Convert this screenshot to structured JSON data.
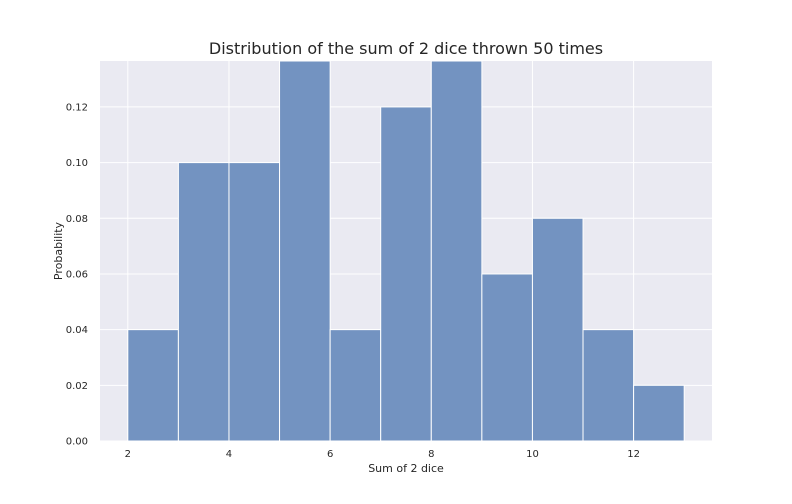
{
  "chart_data": {
    "type": "bar",
    "title": "Distribution of the sum of 2 dice thrown 50 times",
    "xlabel": "Sum of 2 dice",
    "ylabel": "Probability",
    "bins": [
      {
        "x0": 2,
        "x1": 3,
        "value": 0.04
      },
      {
        "x0": 3,
        "x1": 4,
        "value": 0.1
      },
      {
        "x0": 4,
        "x1": 5,
        "value": 0.1
      },
      {
        "x0": 5,
        "x1": 6,
        "value": 0.14
      },
      {
        "x0": 6,
        "x1": 7,
        "value": 0.04
      },
      {
        "x0": 7,
        "x1": 8,
        "value": 0.12
      },
      {
        "x0": 8,
        "x1": 9,
        "value": 0.14
      },
      {
        "x0": 9,
        "x1": 10,
        "value": 0.06
      },
      {
        "x0": 10,
        "x1": 11,
        "value": 0.08
      },
      {
        "x0": 11,
        "x1": 12,
        "value": 0.04
      },
      {
        "x0": 12,
        "x1": 13,
        "value": 0.02
      }
    ],
    "xlim": [
      1.45,
      13.55
    ],
    "ylim": [
      0,
      0.1365
    ],
    "xticks": [
      2,
      4,
      6,
      8,
      10,
      12
    ],
    "xtick_labels": [
      "2",
      "4",
      "6",
      "8",
      "10",
      "12"
    ],
    "yticks": [
      0,
      0.02,
      0.04,
      0.06,
      0.08,
      0.1,
      0.12
    ],
    "ytick_labels": [
      "0.00",
      "0.02",
      "0.04",
      "0.06",
      "0.08",
      "0.10",
      "0.12"
    ],
    "grid": true,
    "colors": {
      "bar": "#7393c1",
      "background": "#eaeaf2",
      "grid": "#ffffff"
    }
  }
}
